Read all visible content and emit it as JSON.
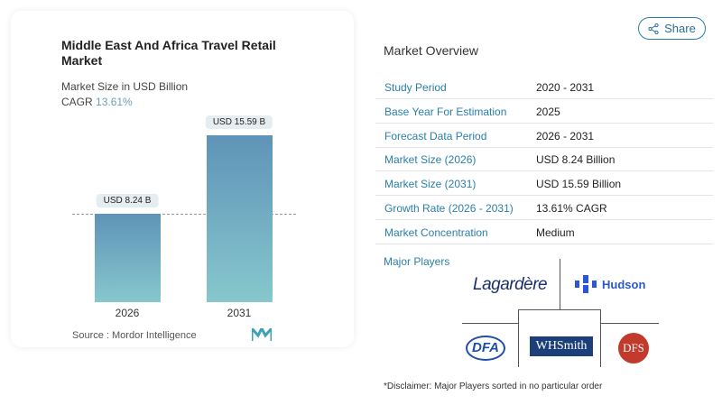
{
  "chart_data": {
    "type": "bar",
    "title": "Middle East And Africa Travel Retail Market",
    "subtitle": "Market Size in USD Billion",
    "cagr_label": "CAGR",
    "cagr_value": "13.61%",
    "categories": [
      "2026",
      "2031"
    ],
    "values": [
      8.24,
      15.59
    ],
    "data_labels": [
      "USD 8.24 B",
      "USD 15.59 B"
    ],
    "colors": {
      "bar_top": "#5f93b8",
      "bar_bottom": "#86c8cd"
    },
    "source": "Source :  Mordor Intelligence"
  },
  "share_label": "Share",
  "overview": {
    "title": "Market Overview",
    "rows": [
      {
        "k": "Study Period",
        "v": "2020 - 2031"
      },
      {
        "k": "Base Year For Estimation",
        "v": "2025"
      },
      {
        "k": "Forecast Data Period",
        "v": "2026 - 2031"
      },
      {
        "k": "Market Size (2026)",
        "v": "USD 8.24 Billion"
      },
      {
        "k": "Market Size (2031)",
        "v": "USD 15.59 Billion"
      },
      {
        "k": "Growth Rate (2026 - 2031)",
        "v": "13.61% CAGR"
      },
      {
        "k": "Market Concentration",
        "v": "Medium"
      }
    ]
  },
  "players": {
    "title": "Major Players",
    "names": [
      "Lagardère",
      "Hudson",
      "DFA",
      "WHSmith",
      "DFS"
    ]
  },
  "disclaimer": "*Disclaimer: Major Players sorted in no particular order"
}
